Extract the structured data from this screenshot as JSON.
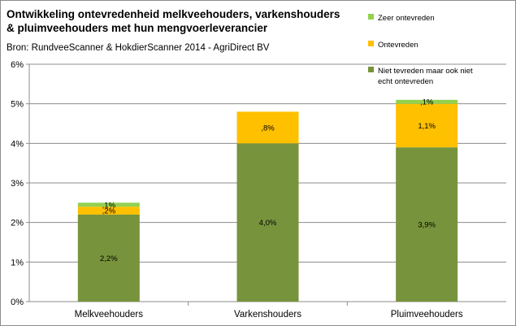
{
  "chart_data": {
    "type": "bar",
    "stacked": true,
    "title": "Ontwikkeling ontevredenheid melkveehouders, varkenshouders & pluimveehouders met hun mengvoerleverancier",
    "subtitle": "Bron: RundveeScanner & HokdierScanner 2014 - AgriDirect BV",
    "xlabel": "",
    "ylabel": "",
    "ylim": [
      0,
      6
    ],
    "y_unit": "%",
    "y_ticks": [
      {
        "value": 0,
        "label": "0%"
      },
      {
        "value": 1,
        "label": "1%"
      },
      {
        "value": 2,
        "label": "2%"
      },
      {
        "value": 3,
        "label": "3%"
      },
      {
        "value": 4,
        "label": "4%"
      },
      {
        "value": 5,
        "label": "5%"
      },
      {
        "value": 6,
        "label": "6%"
      }
    ],
    "grid": true,
    "legend_position": "right",
    "categories": [
      "Melkveehouders",
      "Varkenshouders",
      "Pluimveehouders"
    ],
    "series": [
      {
        "name": "Niet tevreden maar ook niet echt ontevreden",
        "color": "#77933c",
        "values": [
          2.2,
          4.0,
          3.9
        ],
        "labels": [
          "2,2%",
          "4,0%",
          "3,9%"
        ]
      },
      {
        "name": "Ontevreden",
        "color": "#ffc000",
        "values": [
          0.2,
          0.8,
          1.1
        ],
        "labels": [
          ",2%",
          ",8%",
          "1,1%"
        ]
      },
      {
        "name": "Zeer ontevreden",
        "color": "#92d050",
        "values": [
          0.1,
          0.0,
          0.1
        ],
        "labels": [
          ",1%",
          "",
          ",1%"
        ]
      }
    ],
    "legend_order": [
      "Zeer ontevreden",
      "Ontevreden",
      "Niet tevreden maar ook niet echt ontevreden"
    ]
  }
}
